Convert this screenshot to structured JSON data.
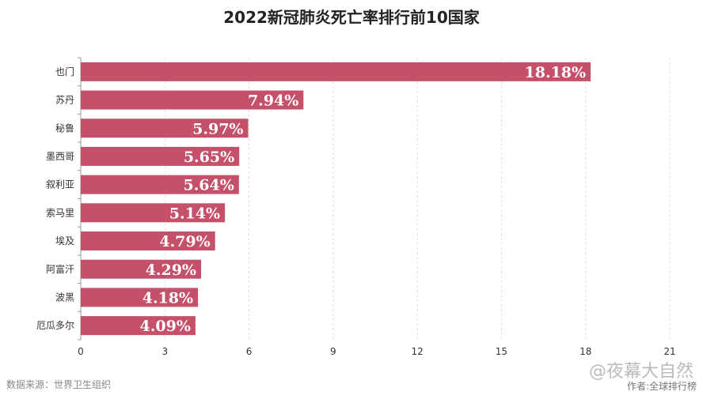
{
  "chart_data": {
    "type": "bar",
    "orientation": "horizontal",
    "title": "2022新冠肺炎死亡率排行前10国家",
    "categories": [
      "也门",
      "苏丹",
      "秘鲁",
      "墨西哥",
      "叙利亚",
      "索马里",
      "埃及",
      "阿富汗",
      "波黑",
      "厄瓜多尔"
    ],
    "values": [
      18.18,
      7.94,
      5.97,
      5.65,
      5.64,
      5.14,
      4.79,
      4.29,
      4.18,
      4.09
    ],
    "data_labels": [
      "18.18%",
      "7.94%",
      "5.97%",
      "5.65%",
      "5.64%",
      "5.14%",
      "4.79%",
      "4.29%",
      "4.18%",
      "4.09%"
    ],
    "xlim": [
      0,
      21
    ],
    "xticks": [
      0,
      3,
      6,
      9,
      12,
      15,
      18,
      21
    ],
    "grid": true,
    "bar_color": "#c4506a"
  },
  "footer": {
    "source": "数据来源：世界卫生组织",
    "watermark": "@夜幕大自然",
    "author": "作者:全球排行榜"
  }
}
